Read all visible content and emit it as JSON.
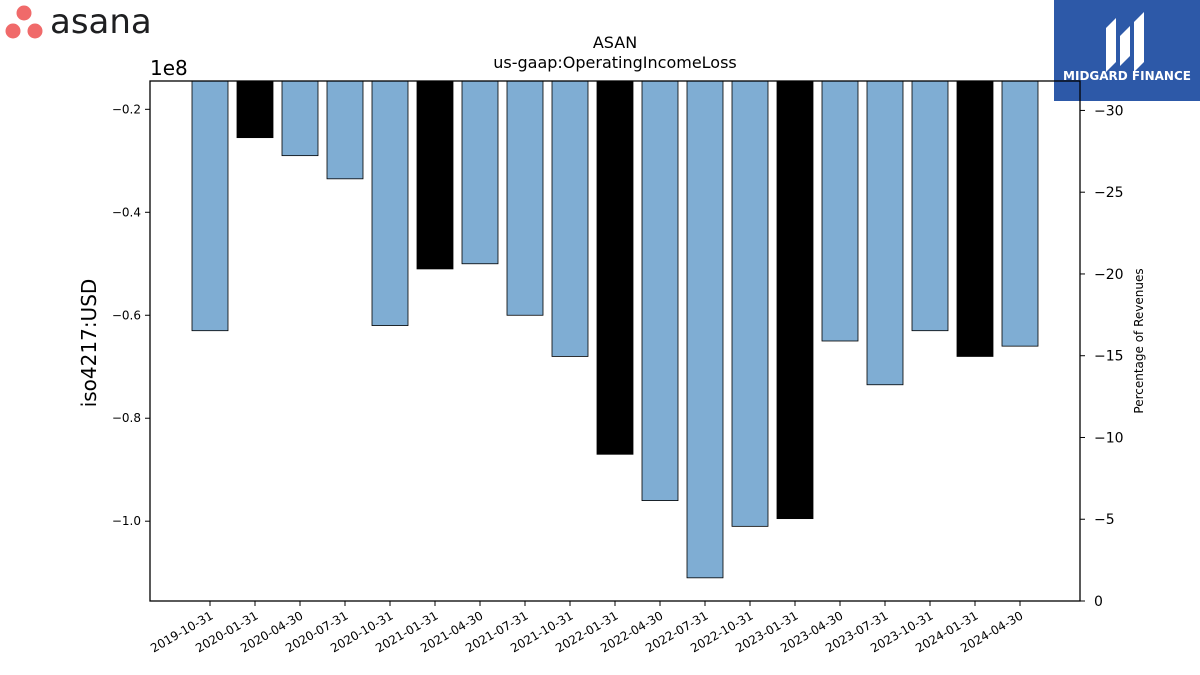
{
  "brand": {
    "logo_text": "asana",
    "logo_dot_color": "#f06a6a",
    "partner_name": "MIDGARD FINANCE",
    "partner_bg": "#2d59a8"
  },
  "chart_data": {
    "type": "bar",
    "title": "ASAN",
    "subtitle": "us-gaap:OperatingIncomeLoss",
    "ylabel": "iso4217:USD",
    "y2label": "Percentage of Revenues",
    "scale_label": "1e8",
    "categories": [
      "2019-10-31",
      "2020-01-31",
      "2020-04-30",
      "2020-07-31",
      "2020-10-31",
      "2021-01-31",
      "2021-04-30",
      "2021-07-31",
      "2021-10-31",
      "2022-01-31",
      "2022-04-30",
      "2022-07-31",
      "2022-10-31",
      "2023-01-31",
      "2023-04-30",
      "2023-07-31",
      "2023-10-31",
      "2024-01-31",
      "2024-04-30"
    ],
    "values": [
      -0.63,
      -0.255,
      -0.29,
      -0.335,
      -0.62,
      -0.51,
      -0.5,
      -0.6,
      -0.68,
      -0.87,
      -0.96,
      -1.11,
      -1.01,
      -0.995,
      -0.65,
      -0.735,
      -0.63,
      -0.68,
      -0.66
    ],
    "bar_colors": [
      "#7fadd3",
      "#000000",
      "#7fadd3",
      "#7fadd3",
      "#7fadd3",
      "#000000",
      "#7fadd3",
      "#7fadd3",
      "#7fadd3",
      "#000000",
      "#7fadd3",
      "#7fadd3",
      "#7fadd3",
      "#000000",
      "#7fadd3",
      "#7fadd3",
      "#7fadd3",
      "#000000",
      "#7fadd3"
    ],
    "ylim": [
      -1.155,
      -0.145
    ],
    "yticks": [
      -0.2,
      -0.4,
      -0.6,
      -0.8,
      -1.0
    ],
    "ytick_labels": [
      "−0.2",
      "−0.4",
      "−0.6",
      "−0.8",
      "−1.0"
    ],
    "y2lim": [
      0,
      31.8
    ],
    "y2ticks": [
      30,
      25,
      20,
      15,
      10,
      5,
      0
    ],
    "y2tick_labels": [
      "−30",
      "−25",
      "−20",
      "−15",
      "−10",
      "−5",
      "0"
    ],
    "grid": false
  }
}
